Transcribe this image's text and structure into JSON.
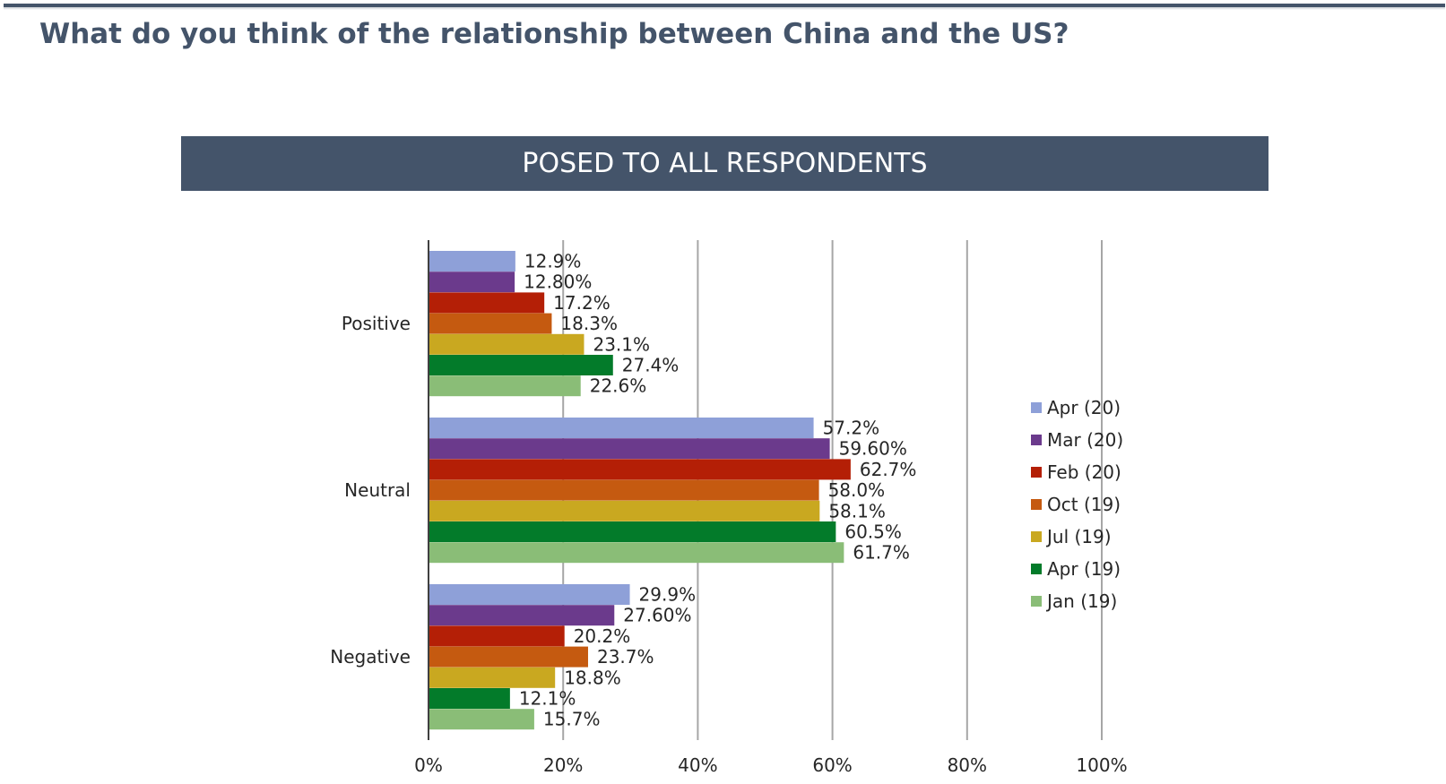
{
  "title": "What do you think of the relationship between China and the US?",
  "banner": "POSED TO ALL RESPONDENTS",
  "colors": {
    "header": "#44546a",
    "gridline": "#a6a6a6",
    "axis": "#404040",
    "text": "#262626"
  },
  "chart_data": {
    "type": "bar",
    "orientation": "horizontal",
    "title": "",
    "xlabel": "",
    "ylabel": "",
    "categories": [
      "Positive",
      "Neutral",
      "Negative"
    ],
    "series": [
      {
        "name": "Apr (20)",
        "color": "#8ea0d8",
        "values": [
          12.9,
          57.2,
          29.9
        ],
        "labels": [
          "12.9%",
          "57.2%",
          "29.9%"
        ]
      },
      {
        "name": "Mar (20)",
        "color": "#6b3a8c",
        "values": [
          12.8,
          59.6,
          27.6
        ],
        "labels": [
          "12.80%",
          "59.60%",
          "27.60%"
        ]
      },
      {
        "name": "Feb (20)",
        "color": "#b41f06",
        "values": [
          17.2,
          62.7,
          20.2
        ],
        "labels": [
          "17.2%",
          "62.7%",
          "20.2%"
        ]
      },
      {
        "name": "Oct (19)",
        "color": "#c55a10",
        "values": [
          18.3,
          58.0,
          23.7
        ],
        "labels": [
          "18.3%",
          "58.0%",
          "23.7%"
        ]
      },
      {
        "name": "Jul (19)",
        "color": "#c9a820",
        "values": [
          23.1,
          58.1,
          18.8
        ],
        "labels": [
          "23.1%",
          "58.1%",
          "18.8%"
        ]
      },
      {
        "name": "Apr (19)",
        "color": "#037b2a",
        "values": [
          27.4,
          60.5,
          12.1
        ],
        "labels": [
          "27.4%",
          "60.5%",
          "12.1%"
        ]
      },
      {
        "name": "Jan (19)",
        "color": "#8abd77",
        "values": [
          22.6,
          61.7,
          15.7
        ],
        "labels": [
          "22.6%",
          "61.7%",
          "15.7%"
        ]
      }
    ],
    "xlim": [
      0,
      100
    ],
    "xticks": [
      0,
      20,
      40,
      60,
      80,
      100
    ],
    "xtick_labels": [
      "0%",
      "20%",
      "40%",
      "60%",
      "80%",
      "100%"
    ],
    "grid": true,
    "legend": "right"
  }
}
